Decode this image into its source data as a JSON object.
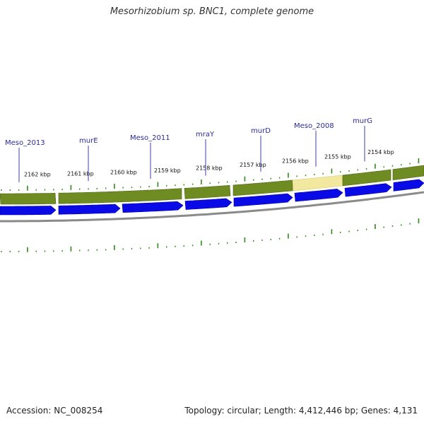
{
  "title": "Mesorhizobium sp. BNC1, complete genome",
  "footer": {
    "accession": "Accession: NC_008254",
    "stats": "Topology: circular; Length: 4,412,446 bp; Genes: 4,131"
  },
  "colors": {
    "cds_strand": "#0a0ae6",
    "gene_band": "#6f8c22",
    "gene_band_highlight": "#f2e8a0",
    "backbone": "#8a8a8a",
    "ticks": "#2f8a1a",
    "gene_label": "#2a2a9a"
  },
  "scale": {
    "unit": "kbp",
    "labels": [
      "2162 kbp",
      "2161 kbp",
      "2160 kbp",
      "2159 kbp",
      "2158 kbp",
      "2157 kbp",
      "2156 kbp",
      "2155 kbp",
      "2154 kbp"
    ]
  },
  "genes": [
    {
      "label": "Meso_2013"
    },
    {
      "label": "murE"
    },
    {
      "label": "Meso_2011"
    },
    {
      "label": "mraY"
    },
    {
      "label": "murD"
    },
    {
      "label": "Meso_2008"
    },
    {
      "label": "murG"
    }
  ]
}
